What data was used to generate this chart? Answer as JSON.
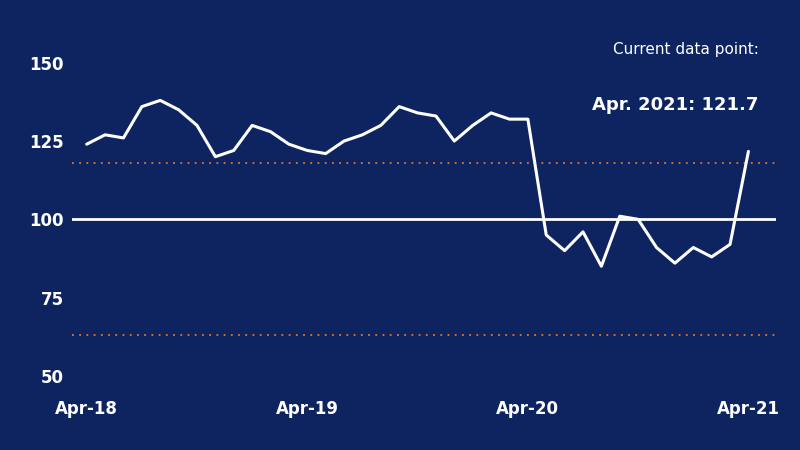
{
  "annotation_title": "Current data point:",
  "annotation_value": "Apr. 2021: 121.7",
  "background_color": "#0d2461",
  "line_color": "#ffffff",
  "dotted_line_color": "#e87722",
  "solid_hline_value": 100,
  "dotted_hline_upper": 118,
  "dotted_hline_lower": 63,
  "text_color": "#ffffff",
  "ylim": [
    45,
    160
  ],
  "yticks": [
    50,
    75,
    100,
    125,
    150
  ],
  "xtick_labels": [
    "Apr-18",
    "Apr-19",
    "Apr-20",
    "Apr-21"
  ],
  "xtick_positions": [
    0,
    12,
    24,
    36
  ],
  "x_values": [
    0,
    1,
    2,
    3,
    4,
    5,
    6,
    7,
    8,
    9,
    10,
    11,
    12,
    13,
    14,
    15,
    16,
    17,
    18,
    19,
    20,
    21,
    22,
    23,
    24,
    25,
    26,
    27,
    28,
    29,
    30,
    31,
    32,
    33,
    34,
    35,
    36
  ],
  "y_values": [
    124,
    127,
    126,
    136,
    138,
    135,
    130,
    120,
    122,
    130,
    128,
    124,
    122,
    121,
    125,
    127,
    130,
    136,
    134,
    133,
    125,
    130,
    134,
    132,
    132,
    95,
    90,
    96,
    85,
    101,
    100,
    91,
    86,
    91,
    88,
    92,
    121.7
  ]
}
